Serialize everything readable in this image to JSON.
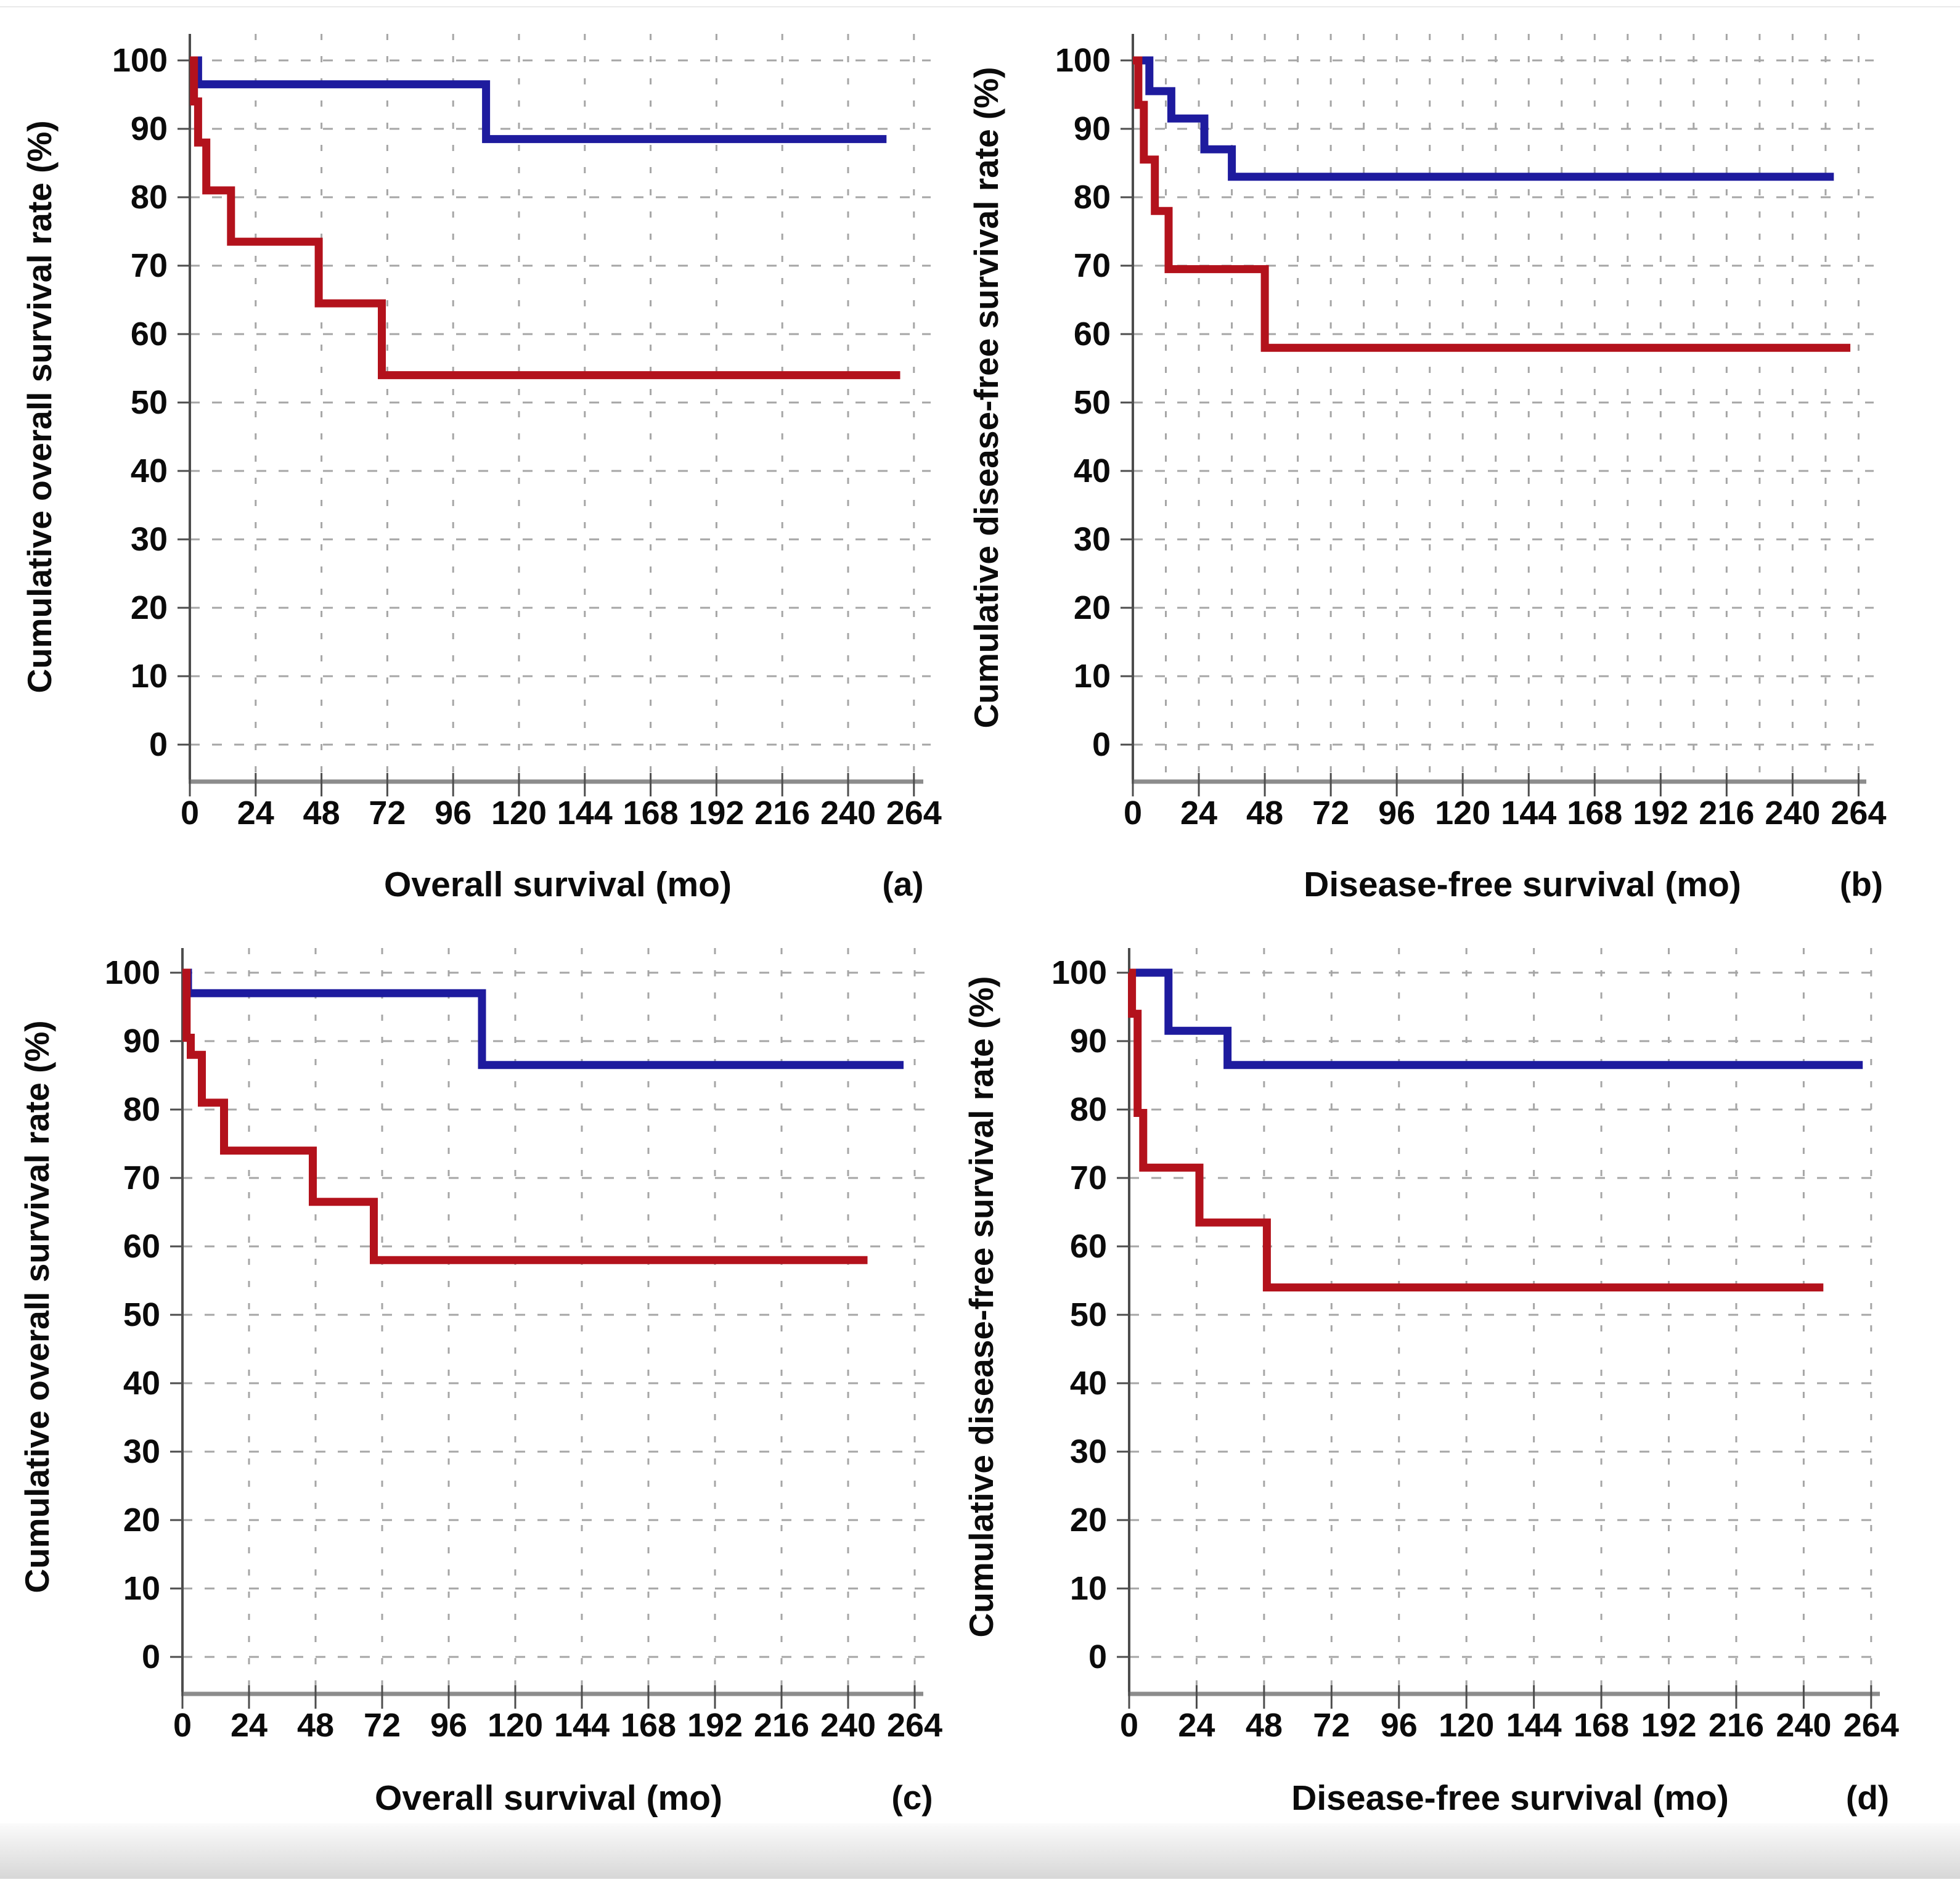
{
  "figure": {
    "background": "#ffffff",
    "bottom_band_top_color": "#fbfbfb",
    "bottom_band_bottom_color": "#d7d7d7",
    "top_hairline_color": "#e9e9e9"
  },
  "colors": {
    "blue_series": "#1e1b9e",
    "red_series": "#b3121c",
    "grid": "#a6a6a6",
    "y_axis": "#4d4d4d",
    "x_axis": "#8c8c8c",
    "tick": "#4d4d4d",
    "text": "#0b0b0b"
  },
  "chart_data": [
    {
      "id": "a",
      "type": "line",
      "step": true,
      "panel_label": "(a)",
      "xlabel": "Overall survival (mo)",
      "ylabel": "Cumulative overall survival rate (%)",
      "xlim": [
        0,
        270
      ],
      "ylim": [
        0,
        100
      ],
      "x_ticks": [
        0,
        24,
        48,
        72,
        96,
        120,
        144,
        168,
        192,
        216,
        240,
        264
      ],
      "y_ticks": [
        0,
        10,
        20,
        30,
        40,
        50,
        60,
        70,
        80,
        90,
        100
      ],
      "grid": "dashed",
      "x_grid_interval_months": 24,
      "legend": "none",
      "series": [
        {
          "name": "blue-series",
          "color": "#1e1b9e",
          "points": [
            [
              0,
              100
            ],
            [
              3,
              96.5
            ],
            [
              108,
              88.5
            ],
            [
              254,
              88.5
            ]
          ]
        },
        {
          "name": "red-series",
          "color": "#b3121c",
          "points": [
            [
              0,
              100
            ],
            [
              1.5,
              94
            ],
            [
              3,
              88
            ],
            [
              6,
              81
            ],
            [
              15,
              73.5
            ],
            [
              47,
              64.5
            ],
            [
              70,
              54
            ],
            [
              259,
              54
            ]
          ]
        }
      ]
    },
    {
      "id": "b",
      "type": "line",
      "step": true,
      "panel_label": "(b)",
      "xlabel": "Disease-free survival (mo)",
      "ylabel": "Cumulative disease-free survival rate (%)",
      "xlim": [
        0,
        270
      ],
      "ylim": [
        0,
        100
      ],
      "x_ticks": [
        0,
        24,
        48,
        72,
        96,
        120,
        144,
        168,
        192,
        216,
        240,
        264
      ],
      "y_ticks": [
        0,
        10,
        20,
        30,
        40,
        50,
        60,
        70,
        80,
        90,
        100
      ],
      "grid": "dashed",
      "x_grid_interval_months": 12,
      "legend": "none",
      "series": [
        {
          "name": "blue-series",
          "color": "#1e1b9e",
          "points": [
            [
              0,
              100
            ],
            [
              6,
              95.5
            ],
            [
              14,
              91.5
            ],
            [
              26,
              87
            ],
            [
              36,
              83
            ],
            [
              255,
              83
            ]
          ]
        },
        {
          "name": "red-series",
          "color": "#b3121c",
          "points": [
            [
              0,
              100
            ],
            [
              2,
              93.5
            ],
            [
              4,
              85.5
            ],
            [
              8,
              78
            ],
            [
              13,
              69.5
            ],
            [
              48,
              58
            ],
            [
              261,
              58
            ]
          ]
        }
      ]
    },
    {
      "id": "c",
      "type": "line",
      "step": true,
      "panel_label": "(c)",
      "xlabel": "Overall survival (mo)",
      "ylabel": "Cumulative overall survival rate (%)",
      "xlim": [
        0,
        270
      ],
      "ylim": [
        0,
        100
      ],
      "x_ticks": [
        0,
        24,
        48,
        72,
        96,
        120,
        144,
        168,
        192,
        216,
        240,
        264
      ],
      "y_ticks": [
        0,
        10,
        20,
        30,
        40,
        50,
        60,
        70,
        80,
        90,
        100
      ],
      "grid": "dashed",
      "x_grid_interval_months": 24,
      "legend": "none",
      "series": [
        {
          "name": "blue-series",
          "color": "#1e1b9e",
          "points": [
            [
              0,
              100
            ],
            [
              2,
              97
            ],
            [
              108,
              86.5
            ],
            [
              260,
              86.5
            ]
          ]
        },
        {
          "name": "red-series",
          "color": "#b3121c",
          "points": [
            [
              0,
              100
            ],
            [
              1.5,
              90.5
            ],
            [
              3,
              88
            ],
            [
              7,
              81
            ],
            [
              15,
              74
            ],
            [
              47,
              66.5
            ],
            [
              69,
              58
            ],
            [
              247,
              58
            ]
          ]
        }
      ]
    },
    {
      "id": "d",
      "type": "line",
      "step": true,
      "panel_label": "(d)",
      "xlabel": "Disease-free survival (mo)",
      "ylabel": "Cumulative disease-free survival rate (%)",
      "xlim": [
        0,
        270
      ],
      "ylim": [
        0,
        100
      ],
      "x_ticks": [
        0,
        24,
        48,
        72,
        96,
        120,
        144,
        168,
        192,
        216,
        240,
        264
      ],
      "y_ticks": [
        0,
        10,
        20,
        30,
        40,
        50,
        60,
        70,
        80,
        90,
        100
      ],
      "grid": "dashed",
      "x_grid_interval_months": 24,
      "legend": "none",
      "series": [
        {
          "name": "blue-series",
          "color": "#1e1b9e",
          "points": [
            [
              0,
              100
            ],
            [
              14,
              91.5
            ],
            [
              35,
              86.5
            ],
            [
              261,
              86.5
            ]
          ]
        },
        {
          "name": "red-series",
          "color": "#b3121c",
          "points": [
            [
              0,
              100
            ],
            [
              1,
              94
            ],
            [
              3,
              79.5
            ],
            [
              5,
              71.5
            ],
            [
              25,
              63.5
            ],
            [
              49,
              54
            ],
            [
              247,
              54
            ]
          ]
        }
      ]
    }
  ]
}
